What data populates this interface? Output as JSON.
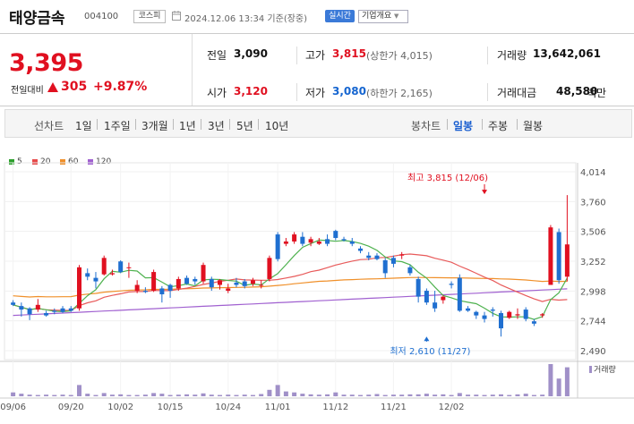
{
  "header": {
    "name": "태양금속",
    "code": "004100",
    "market": "코스피",
    "datetime": "2024.12.06 13:34 기준(장중)",
    "live_label": "실시간",
    "overview_label": "기업개요"
  },
  "price": {
    "current": "3,395",
    "compare_label": "전일대비",
    "change": "305",
    "rate": "+9.87%"
  },
  "stats": {
    "prev_label": "전일",
    "prev_value": "3,090",
    "high_label": "고가",
    "high_value": "3,815",
    "upper_limit": "(상한가 4,015)",
    "volume_label": "거래량",
    "volume_value": "13,642,061",
    "open_label": "시가",
    "open_value": "3,120",
    "low_label": "저가",
    "low_value": "3,080",
    "lower_limit": "(하한가 2,165)",
    "amount_label": "거래대금",
    "amount_value": "48,580",
    "amount_unit": "백만"
  },
  "tabs": {
    "line_label": "선차트",
    "line_tabs": [
      "1일",
      "1주일",
      "3개월",
      "1년",
      "3년",
      "5년",
      "10년"
    ],
    "candle_label": "봉차트",
    "candle_tabs": [
      "일봉",
      "주봉",
      "월봉"
    ],
    "active": "일봉"
  },
  "legend": [
    {
      "label": "5",
      "color": "#2ca02c"
    },
    {
      "label": "20",
      "color": "#e84a4a"
    },
    {
      "label": "60",
      "color": "#f0902a"
    },
    {
      "label": "120",
      "color": "#a060d0"
    }
  ],
  "colors": {
    "up": "#e01020",
    "down": "#1f6fd0",
    "volume": "#a090c8",
    "ma5": "#4fb24f",
    "ma20": "#e85a5a",
    "ma60": "#f0902a",
    "ma120": "#a060d0"
  },
  "chart_data": {
    "type": "candlestick",
    "y_ticks": [
      "4,014",
      "3,760",
      "3,506",
      "3,252",
      "2,998",
      "2,744",
      "2,490"
    ],
    "ylim": [
      2490,
      4014
    ],
    "x_ticks": [
      {
        "label": "09/06",
        "i": 0
      },
      {
        "label": "09/20",
        "i": 7
      },
      {
        "label": "10/02",
        "i": 13
      },
      {
        "label": "10/15",
        "i": 19
      },
      {
        "label": "10/24",
        "i": 26
      },
      {
        "label": "11/01",
        "i": 32
      },
      {
        "label": "11/12",
        "i": 39
      },
      {
        "label": "11/21",
        "i": 46
      },
      {
        "label": "12/02",
        "i": 53
      }
    ],
    "annotations": [
      {
        "text": "최고 3,815 (12/06)",
        "i": 57,
        "value": 3815
      },
      {
        "text": "최저 2,610 (11/27)",
        "i": 50,
        "value": 2610
      }
    ],
    "volume_label": "거래량",
    "candles": [
      [
        2900,
        2920,
        2870,
        2880
      ],
      [
        2870,
        2900,
        2780,
        2840
      ],
      [
        2850,
        2860,
        2750,
        2800
      ],
      [
        2840,
        2930,
        2820,
        2880
      ],
      [
        2810,
        2830,
        2780,
        2790
      ],
      [
        2830,
        2850,
        2800,
        2820
      ],
      [
        2850,
        2870,
        2810,
        2820
      ],
      [
        2850,
        2870,
        2820,
        2830
      ],
      [
        2850,
        3220,
        2830,
        3200
      ],
      [
        3150,
        3190,
        3090,
        3120
      ],
      [
        3110,
        3160,
        3020,
        3080
      ],
      [
        3140,
        3300,
        3130,
        3280
      ],
      [
        3140,
        3180,
        3130,
        3150
      ],
      [
        3250,
        3260,
        3150,
        3160
      ],
      [
        3200,
        3240,
        3110,
        3200
      ],
      [
        3000,
        3090,
        2980,
        3050
      ],
      [
        3000,
        3030,
        2980,
        2990
      ],
      [
        3000,
        3180,
        2990,
        3160
      ],
      [
        3020,
        3040,
        2900,
        2970
      ],
      [
        3050,
        3060,
        2940,
        3000
      ],
      [
        3020,
        3120,
        3000,
        3100
      ],
      [
        3110,
        3130,
        3050,
        3060
      ],
      [
        3100,
        3120,
        3050,
        3080
      ],
      [
        3080,
        3240,
        3060,
        3220
      ],
      [
        3100,
        3120,
        3000,
        3030
      ],
      [
        3050,
        3100,
        3010,
        3090
      ],
      [
        3000,
        3060,
        2980,
        3020
      ],
      [
        3070,
        3110,
        3030,
        3050
      ],
      [
        3080,
        3100,
        3020,
        3040
      ],
      [
        3060,
        3110,
        3040,
        3090
      ],
      [
        3050,
        3090,
        3020,
        3050
      ],
      [
        3100,
        3300,
        3080,
        3280
      ],
      [
        3480,
        3500,
        3250,
        3270
      ],
      [
        3400,
        3450,
        3380,
        3420
      ],
      [
        3420,
        3500,
        3400,
        3480
      ],
      [
        3460,
        3500,
        3380,
        3400
      ],
      [
        3410,
        3460,
        3380,
        3440
      ],
      [
        3400,
        3450,
        3390,
        3420
      ],
      [
        3440,
        3480,
        3380,
        3400
      ],
      [
        3510,
        3520,
        3430,
        3450
      ],
      [
        3440,
        3460,
        3420,
        3430
      ],
      [
        3420,
        3450,
        3380,
        3400
      ],
      [
        3360,
        3380,
        3320,
        3340
      ],
      [
        3300,
        3330,
        3260,
        3280
      ],
      [
        3300,
        3320,
        3260,
        3270
      ],
      [
        3260,
        3280,
        3110,
        3150
      ],
      [
        3280,
        3300,
        3200,
        3230
      ],
      [
        3300,
        3330,
        3270,
        3310
      ],
      [
        3200,
        3220,
        3130,
        3150
      ],
      [
        3100,
        3120,
        2900,
        2950
      ],
      [
        3000,
        3020,
        2880,
        2900
      ],
      [
        2900,
        3000,
        2820,
        2850
      ],
      [
        2920,
        2960,
        2890,
        2950
      ],
      [
        3060,
        3080,
        3020,
        3050
      ],
      [
        3110,
        3140,
        2820,
        2830
      ],
      [
        2850,
        2870,
        2820,
        2830
      ],
      [
        2820,
        2830,
        2760,
        2790
      ],
      [
        2790,
        2820,
        2730,
        2760
      ],
      [
        2840,
        2860,
        2780,
        2830
      ],
      [
        2810,
        2830,
        2610,
        2680
      ],
      [
        2770,
        2830,
        2760,
        2820
      ],
      [
        2790,
        2850,
        2760,
        2800
      ],
      [
        2840,
        2860,
        2740,
        2760
      ],
      [
        2740,
        2760,
        2700,
        2720
      ],
      [
        2790,
        2810,
        2770,
        2800
      ],
      [
        3050,
        3560,
        3050,
        3540
      ],
      [
        3500,
        3530,
        3060,
        3090
      ],
      [
        3120,
        3815,
        3080,
        3395
      ]
    ],
    "volumes": [
      0.12,
      0.08,
      0.05,
      0.04,
      0.05,
      0.04,
      0.05,
      0.04,
      0.35,
      0.08,
      0.04,
      0.1,
      0.05,
      0.06,
      0.04,
      0.04,
      0.05,
      0.1,
      0.08,
      0.04,
      0.05,
      0.06,
      0.05,
      0.09,
      0.05,
      0.04,
      0.05,
      0.04,
      0.05,
      0.04,
      0.07,
      0.2,
      0.35,
      0.15,
      0.12,
      0.08,
      0.06,
      0.05,
      0.06,
      0.12,
      0.05,
      0.05,
      0.04,
      0.05,
      0.07,
      0.04,
      0.05,
      0.05,
      0.06,
      0.06,
      0.08,
      0.05,
      0.06,
      0.04,
      0.1,
      0.05,
      0.05,
      0.04,
      0.05,
      0.06,
      0.04,
      0.06,
      0.08,
      0.04,
      0.05,
      1.0,
      0.55,
      0.9
    ]
  }
}
